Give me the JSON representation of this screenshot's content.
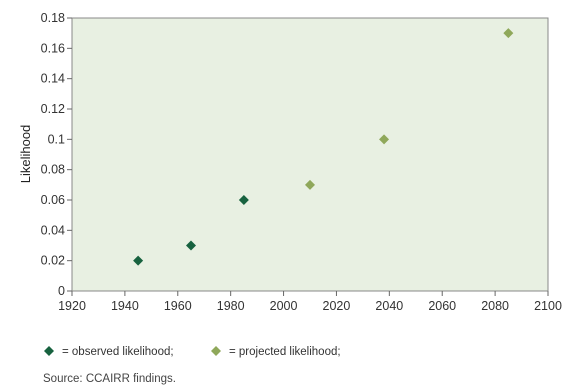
{
  "chart_data": {
    "type": "scatter",
    "ylabel": "Likelihood",
    "xlim": [
      1920,
      2100
    ],
    "ylim": [
      0,
      0.18
    ],
    "x_ticks": [
      "1920",
      "1940",
      "1960",
      "1980",
      "2000",
      "2020",
      "2040",
      "2060",
      "2080",
      "2100"
    ],
    "y_ticks": [
      "0",
      "0.02",
      "0.04",
      "0.06",
      "0.08",
      "0.1",
      "0.12",
      "0.14",
      "0.16",
      "0.18"
    ],
    "grid": false,
    "plot_background": "#e8f0e2",
    "series": [
      {
        "key": "observed",
        "color": "#17623f",
        "points": [
          {
            "x": 1945,
            "y": 0.02
          },
          {
            "x": 1965,
            "y": 0.03
          },
          {
            "x": 1985,
            "y": 0.06
          }
        ]
      },
      {
        "key": "projected",
        "color": "#8fa85a",
        "points": [
          {
            "x": 2010,
            "y": 0.07
          },
          {
            "x": 2038,
            "y": 0.1
          },
          {
            "x": 2085,
            "y": 0.17
          }
        ]
      }
    ]
  },
  "legend": {
    "observed_label": "= observed likelihood;",
    "projected_label": "= projected likelihood;"
  },
  "source": "Source: CCAIRR findings."
}
